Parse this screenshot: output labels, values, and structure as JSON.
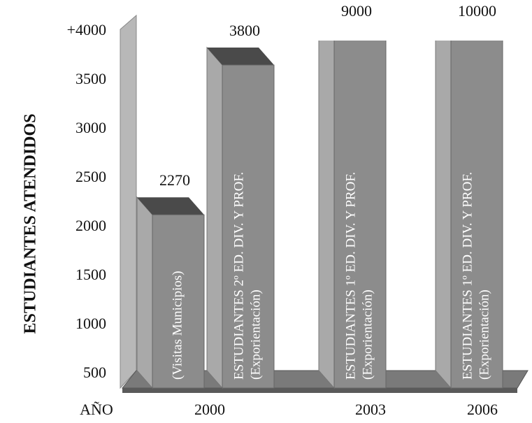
{
  "chart_data": {
    "type": "bar3d",
    "y_axis_label": "ESTUDIANTES ATENDIDOS",
    "x_axis_label": "AÑO",
    "categories": [
      [
        "(Visitas Municipios)"
      ],
      [
        "ESTUDIANTES 2º ED. DIV. Y PROF.",
        "(Exporientación)"
      ],
      [
        "ESTUDIANTES 1º ED. DIV. Y PROF.",
        "(Exporientación)"
      ],
      [
        "ESTUDIANTES 1º ED. DIV. Y PROF.",
        "(Exporientación)"
      ]
    ],
    "values": [
      2270,
      3800,
      9000,
      10000
    ],
    "year_labels": [
      "2000",
      "2003",
      "2006"
    ],
    "color": "#8c8c8c",
    "ylim": [
      500,
      4000
    ],
    "yticks": [
      500,
      1000,
      1500,
      2000,
      2500,
      3000,
      3500,
      {
        "value": 4000,
        "label": "+4000"
      }
    ]
  }
}
